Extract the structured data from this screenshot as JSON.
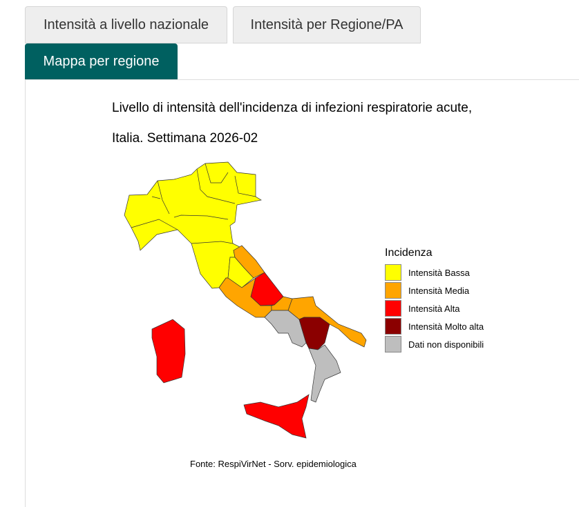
{
  "tabs": [
    {
      "label": "Intensità a livello nazionale",
      "active": false
    },
    {
      "label": "Intensità per Regione/PA",
      "active": false
    },
    {
      "label": "Mappa per regione",
      "active": true
    }
  ],
  "map": {
    "title_line1": "Livello di intensità dell'incidenza di infezioni respiratorie acute,",
    "title_line2": "Italia. Settimana 2026-02",
    "legend": {
      "title": "Incidenza",
      "items": [
        {
          "label": "Intensità Bassa",
          "color": "#ffff00"
        },
        {
          "label": "Intensità Media",
          "color": "#ffa500"
        },
        {
          "label": "Intensità Alta",
          "color": "#ff0000"
        },
        {
          "label": "Intensità Molto alta",
          "color": "#8b0000"
        },
        {
          "label": "Dati non disponibili",
          "color": "#bebebe"
        }
      ]
    },
    "regions": [
      {
        "name": "Nord e Toscana",
        "level": "Intensità Bassa"
      },
      {
        "name": "Umbria",
        "level": "Intensità Bassa"
      },
      {
        "name": "Marche",
        "level": "Intensità Media"
      },
      {
        "name": "Lazio",
        "level": "Intensità Media"
      },
      {
        "name": "Abruzzo",
        "level": "Intensità Alta"
      },
      {
        "name": "Molise",
        "level": "Intensità Media"
      },
      {
        "name": "Puglia",
        "level": "Intensità Media"
      },
      {
        "name": "Campania",
        "level": "Dati non disponibili"
      },
      {
        "name": "Basilicata",
        "level": "Intensità Molto alta"
      },
      {
        "name": "Calabria",
        "level": "Dati non disponibili"
      },
      {
        "name": "Sicilia",
        "level": "Intensità Alta"
      },
      {
        "name": "Sardegna",
        "level": "Intensità Alta"
      }
    ],
    "source": "Fonte: RespiVirNet - Sorv. epidemiologica"
  }
}
